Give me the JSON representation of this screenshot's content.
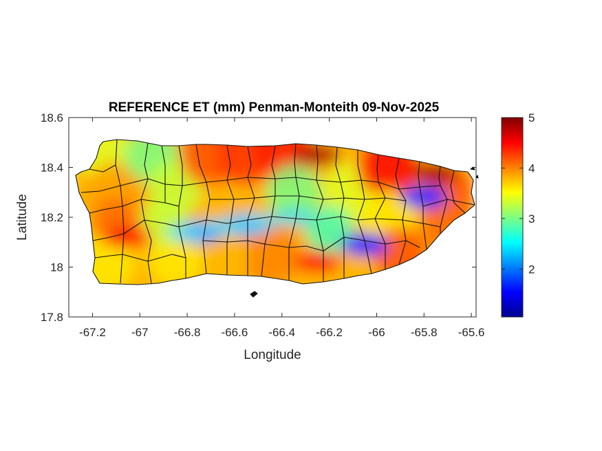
{
  "title": "REFERENCE ET (mm) Penman-Monteith 09-Nov-2025",
  "map": {
    "region": "Puerto Rico",
    "xlabel": "Longitude",
    "ylabel": "Latitude",
    "xlim": [
      -67.3,
      -65.58
    ],
    "ylim": [
      17.8,
      18.6
    ],
    "xticks": [
      -67.2,
      -67,
      -66.8,
      -66.6,
      -66.4,
      -66.2,
      -66,
      -65.8,
      -65.6
    ],
    "xtick_labels": [
      "-67.2",
      "-67",
      "-66.8",
      "-66.6",
      "-66.4",
      "-66.2",
      "-66",
      "-65.8",
      "-65.6"
    ],
    "yticks": [
      17.8,
      18,
      18.2,
      18.4,
      18.6
    ],
    "ytick_labels": [
      "17.8",
      "18",
      "18.2",
      "18.4",
      "18.6"
    ],
    "boundaries": "municipality outlines",
    "grid": false
  },
  "colorbar": {
    "colormap": "jet",
    "range": [
      1.05,
      5
    ],
    "ticks": [
      2,
      3,
      4,
      5
    ],
    "tick_labels": [
      "2",
      "3",
      "4",
      "5"
    ],
    "placement": "right"
  },
  "field_features": [
    {
      "name": "north coast maximum",
      "lon": -66.25,
      "lat": 18.45,
      "value": 4.8
    },
    {
      "name": "northeast maximum",
      "lon": -65.75,
      "lat": 18.38,
      "value": 4.8
    },
    {
      "name": "El Yunque minimum",
      "lon": -65.8,
      "lat": 18.28,
      "value": 1.7
    },
    {
      "name": "Cordillera Central minimum (west)",
      "lon": -66.75,
      "lat": 18.14,
      "value": 2.0
    },
    {
      "name": "Cordillera Central minimum (center)",
      "lon": -66.55,
      "lat": 18.17,
      "value": 2.2
    },
    {
      "name": "Cayey minimum",
      "lon": -66.05,
      "lat": 18.09,
      "value": 1.6
    },
    {
      "name": "southwest maximum",
      "lon": -67.05,
      "lat": 18.12,
      "value": 4.5
    },
    {
      "name": "south coast maximum",
      "lon": -66.25,
      "lat": 18.02,
      "value": 4.5
    }
  ]
}
